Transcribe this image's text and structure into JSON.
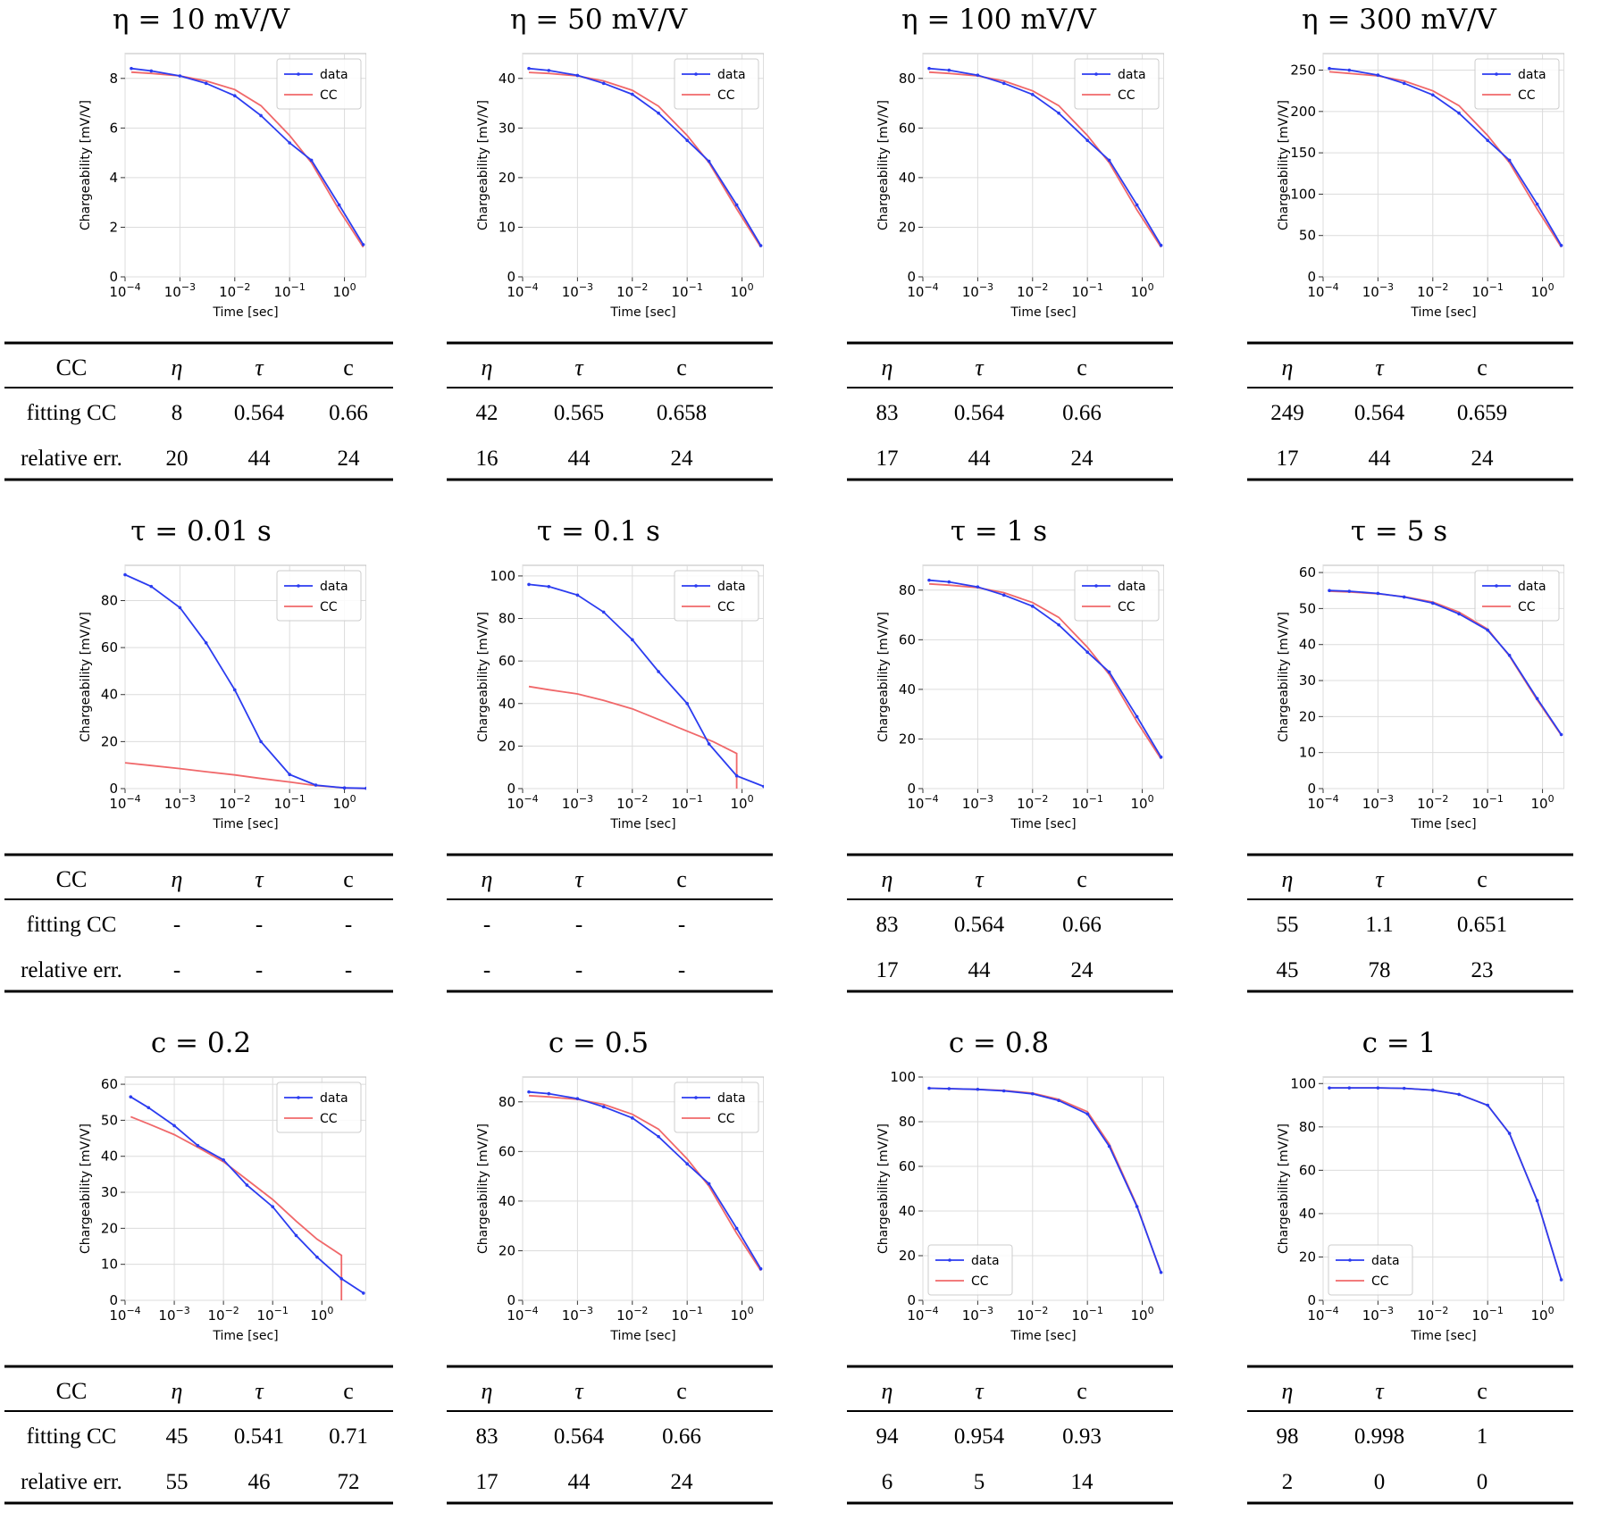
{
  "labels": {
    "table_header_row": "CC",
    "fit_row": "fitting CC",
    "err_row": "relative err."
  },
  "colors": {
    "data": "#2b3cf0",
    "cc": "#f0686a"
  },
  "chart_data": [
    {
      "type": "line",
      "title": "η = 10 mV/V",
      "xlabel": "Time [sec]",
      "ylabel": "Chargeability [mV/V]",
      "xscale": "log",
      "xlim": [
        0.0001,
        2.5
      ],
      "ylim": [
        0,
        9
      ],
      "yticks": [
        0,
        2,
        4,
        6,
        8
      ],
      "legend": "top-right",
      "grid": true,
      "series": [
        {
          "name": "data",
          "x": [
            0.00013,
            0.0003,
            0.001,
            0.003,
            0.01,
            0.03,
            0.1,
            0.25,
            0.8,
            2.2
          ],
          "y": [
            8.4,
            8.3,
            8.1,
            7.8,
            7.3,
            6.5,
            5.4,
            4.7,
            2.9,
            1.3
          ]
        },
        {
          "name": "CC",
          "x": [
            0.00013,
            0.0003,
            0.001,
            0.003,
            0.01,
            0.03,
            0.1,
            0.25,
            0.8,
            2.2
          ],
          "y": [
            8.25,
            8.2,
            8.1,
            7.9,
            7.55,
            6.9,
            5.7,
            4.6,
            2.7,
            1.2
          ]
        }
      ],
      "table": {
        "header": [
          "CC",
          "η",
          "τ",
          "c"
        ],
        "fit": [
          "8",
          "0.564",
          "0.66"
        ],
        "err": [
          "20",
          "44",
          "24"
        ]
      }
    },
    {
      "type": "line",
      "title": "η = 50 mV/V",
      "xlabel": "Time [sec]",
      "ylabel": "Chargeability [mV/V]",
      "xscale": "log",
      "xlim": [
        0.0001,
        2.5
      ],
      "ylim": [
        0,
        45
      ],
      "yticks": [
        0,
        10,
        20,
        30,
        40
      ],
      "legend": "top-right",
      "grid": true,
      "series": [
        {
          "name": "data",
          "x": [
            0.00013,
            0.0003,
            0.001,
            0.003,
            0.01,
            0.03,
            0.1,
            0.25,
            0.8,
            2.2
          ],
          "y": [
            42,
            41.6,
            40.6,
            39,
            36.8,
            33,
            27.5,
            23.3,
            14.5,
            6.3
          ]
        },
        {
          "name": "CC",
          "x": [
            0.00013,
            0.0003,
            0.001,
            0.003,
            0.01,
            0.03,
            0.1,
            0.25,
            0.8,
            2.2
          ],
          "y": [
            41.2,
            41,
            40.5,
            39.5,
            37.6,
            34.4,
            28.5,
            23,
            13.7,
            6
          ]
        }
      ],
      "table": {
        "header": [
          "",
          "η",
          "τ",
          "c"
        ],
        "fit": [
          "42",
          "0.565",
          "0.658"
        ],
        "err": [
          "16",
          "44",
          "24"
        ]
      }
    },
    {
      "type": "line",
      "title": "η = 100 mV/V",
      "xlabel": "Time [sec]",
      "ylabel": "Chargeability [mV/V]",
      "xscale": "log",
      "xlim": [
        0.0001,
        2.5
      ],
      "ylim": [
        0,
        90
      ],
      "yticks": [
        0,
        20,
        40,
        60,
        80
      ],
      "legend": "top-right",
      "grid": true,
      "series": [
        {
          "name": "data",
          "x": [
            0.00013,
            0.0003,
            0.001,
            0.003,
            0.01,
            0.03,
            0.1,
            0.25,
            0.8,
            2.2
          ],
          "y": [
            84,
            83.3,
            81.3,
            78,
            73.5,
            66,
            55,
            47,
            29,
            12.7
          ]
        },
        {
          "name": "CC",
          "x": [
            0.00013,
            0.0003,
            0.001,
            0.003,
            0.01,
            0.03,
            0.1,
            0.25,
            0.8,
            2.2
          ],
          "y": [
            82.5,
            82,
            81,
            79,
            75,
            69,
            57,
            46,
            27,
            12
          ]
        }
      ],
      "table": {
        "header": [
          "",
          "η",
          "τ",
          "c"
        ],
        "fit": [
          "83",
          "0.564",
          "0.66"
        ],
        "err": [
          "17",
          "44",
          "24"
        ]
      }
    },
    {
      "type": "line",
      "title": "η = 300 mV/V",
      "xlabel": "Time [sec]",
      "ylabel": "Chargeability [mV/V]",
      "xscale": "log",
      "xlim": [
        0.0001,
        2.5
      ],
      "ylim": [
        0,
        270
      ],
      "yticks": [
        0,
        50,
        100,
        150,
        200,
        250
      ],
      "legend": "top-right",
      "grid": true,
      "series": [
        {
          "name": "data",
          "x": [
            0.00013,
            0.0003,
            0.001,
            0.003,
            0.01,
            0.03,
            0.1,
            0.25,
            0.8,
            2.2
          ],
          "y": [
            252,
            250,
            244,
            234,
            220,
            198,
            165,
            141,
            88,
            38
          ]
        },
        {
          "name": "CC",
          "x": [
            0.00013,
            0.0003,
            0.001,
            0.003,
            0.01,
            0.03,
            0.1,
            0.25,
            0.8,
            2.2
          ],
          "y": [
            248,
            246,
            243,
            237,
            225,
            207,
            171,
            138,
            82,
            36
          ]
        }
      ],
      "table": {
        "header": [
          "",
          "η",
          "τ",
          "c"
        ],
        "fit": [
          "249",
          "0.564",
          "0.659"
        ],
        "err": [
          "17",
          "44",
          "24"
        ]
      }
    },
    {
      "type": "line",
      "title": "τ = 0.01 s",
      "xlabel": "Time [sec]",
      "ylabel": "Chargeability [mV/V]",
      "xscale": "log",
      "xlim": [
        0.0001,
        2.5
      ],
      "ylim": [
        0,
        95
      ],
      "yticks": [
        0,
        20,
        40,
        60,
        80
      ],
      "legend": "top-right",
      "grid": true,
      "series": [
        {
          "name": "data",
          "x": [
            0.0001,
            0.0003,
            0.001,
            0.003,
            0.01,
            0.03,
            0.1,
            0.3,
            1,
            2.5
          ],
          "y": [
            91,
            86,
            77,
            62,
            42,
            20,
            6,
            1.5,
            0.3,
            0.1
          ]
        },
        {
          "name": "CC",
          "x": [
            0.0001,
            0.0003,
            0.001,
            0.003,
            0.01,
            0.03,
            0.1,
            0.3,
            1,
            2.5
          ],
          "y": [
            11,
            9.8,
            8.5,
            7.2,
            5.8,
            4.3,
            2.8,
            1.3,
            0.3,
            0
          ]
        }
      ],
      "table": {
        "header": [
          "CC",
          "η",
          "τ",
          "c"
        ],
        "fit": [
          "-",
          "-",
          "-"
        ],
        "err": [
          "-",
          "-",
          "-"
        ]
      }
    },
    {
      "type": "line",
      "title": "τ = 0.1 s",
      "xlabel": "Time [sec]",
      "ylabel": "Chargeability [mV/V]",
      "xscale": "log",
      "xlim": [
        0.0001,
        2.5
      ],
      "ylim": [
        0,
        105
      ],
      "yticks": [
        0,
        20,
        40,
        60,
        80,
        100
      ],
      "legend": "top-right",
      "grid": true,
      "series": [
        {
          "name": "data",
          "x": [
            0.00013,
            0.0003,
            0.001,
            0.003,
            0.01,
            0.03,
            0.1,
            0.25,
            0.8,
            2.5
          ],
          "y": [
            96,
            95,
            91,
            83,
            70,
            55,
            40,
            21,
            6,
            1
          ]
        },
        {
          "name": "CC",
          "x": [
            0.00013,
            0.0003,
            0.001,
            0.003,
            0.01,
            0.03,
            0.1,
            0.3,
            0.8,
            0.8
          ],
          "y": [
            48,
            46.5,
            44.5,
            41.5,
            37.5,
            32.5,
            27,
            22,
            16.5,
            0
          ]
        }
      ],
      "table": {
        "header": [
          "",
          "η",
          "τ",
          "c"
        ],
        "fit": [
          "-",
          "-",
          "-"
        ],
        "err": [
          "-",
          "-",
          "-"
        ]
      }
    },
    {
      "type": "line",
      "title": "τ = 1 s",
      "xlabel": "Time [sec]",
      "ylabel": "Chargeability [mV/V]",
      "xscale": "log",
      "xlim": [
        0.0001,
        2.5
      ],
      "ylim": [
        0,
        90
      ],
      "yticks": [
        0,
        20,
        40,
        60,
        80
      ],
      "legend": "top-right",
      "grid": true,
      "series": [
        {
          "name": "data",
          "x": [
            0.00013,
            0.0003,
            0.001,
            0.003,
            0.01,
            0.03,
            0.1,
            0.25,
            0.8,
            2.2
          ],
          "y": [
            84,
            83.3,
            81.3,
            78,
            73.5,
            66,
            55,
            47,
            29,
            12.7
          ]
        },
        {
          "name": "CC",
          "x": [
            0.00013,
            0.0003,
            0.001,
            0.003,
            0.01,
            0.03,
            0.1,
            0.25,
            0.8,
            2.2
          ],
          "y": [
            82.5,
            82,
            81,
            79,
            75,
            69,
            57,
            46,
            27,
            12
          ]
        }
      ],
      "table": {
        "header": [
          "",
          "η",
          "τ",
          "c"
        ],
        "fit": [
          "83",
          "0.564",
          "0.66"
        ],
        "err": [
          "17",
          "44",
          "24"
        ]
      }
    },
    {
      "type": "line",
      "title": "τ = 5 s",
      "xlabel": "Time [sec]",
      "ylabel": "Chargeability [mV/V]",
      "xscale": "log",
      "xlim": [
        0.0001,
        2.5
      ],
      "ylim": [
        0,
        62
      ],
      "yticks": [
        0,
        10,
        20,
        30,
        40,
        50,
        60
      ],
      "legend": "top-right",
      "grid": true,
      "series": [
        {
          "name": "data",
          "x": [
            0.00013,
            0.0003,
            0.001,
            0.003,
            0.01,
            0.03,
            0.1,
            0.25,
            0.8,
            2.2
          ],
          "y": [
            55,
            54.8,
            54.2,
            53.2,
            51.5,
            48.5,
            44,
            37,
            25,
            15
          ]
        },
        {
          "name": "CC",
          "x": [
            0.00013,
            0.0003,
            0.001,
            0.003,
            0.01,
            0.03,
            0.1,
            0.25,
            0.8,
            2.2
          ],
          "y": [
            54.8,
            54.6,
            54.1,
            53.3,
            51.8,
            49,
            44.3,
            36.8,
            24.6,
            14.8
          ]
        }
      ],
      "table": {
        "header": [
          "",
          "η",
          "τ",
          "c"
        ],
        "fit": [
          "55",
          "1.1",
          "0.651"
        ],
        "err": [
          "45",
          "78",
          "23"
        ]
      }
    },
    {
      "type": "line",
      "title": "c = 0.2",
      "xlabel": "Time [sec]",
      "ylabel": "Chargeability [mV/V]",
      "xscale": "log",
      "xlim": [
        0.0001,
        8
      ],
      "ylim": [
        0,
        62
      ],
      "yticks": [
        0,
        10,
        20,
        30,
        40,
        50,
        60
      ],
      "legend": "top-right",
      "grid": true,
      "series": [
        {
          "name": "data",
          "x": [
            0.00013,
            0.0003,
            0.001,
            0.003,
            0.01,
            0.03,
            0.1,
            0.3,
            0.8,
            2.5,
            7
          ],
          "y": [
            56.5,
            53.5,
            48.5,
            43,
            39,
            32,
            26,
            18,
            12,
            6,
            2
          ]
        },
        {
          "name": "CC",
          "x": [
            0.00013,
            0.0003,
            0.001,
            0.003,
            0.01,
            0.03,
            0.1,
            0.3,
            0.8,
            2.5,
            2.5
          ],
          "y": [
            51,
            49,
            46,
            42.5,
            38.5,
            33.5,
            28,
            22,
            17,
            12.5,
            0
          ]
        }
      ],
      "table": {
        "header": [
          "CC",
          "η",
          "τ",
          "c"
        ],
        "fit": [
          "45",
          "0.541",
          "0.71"
        ],
        "err": [
          "55",
          "46",
          "72"
        ]
      }
    },
    {
      "type": "line",
      "title": "c = 0.5",
      "xlabel": "Time [sec]",
      "ylabel": "Chargeability [mV/V]",
      "xscale": "log",
      "xlim": [
        0.0001,
        2.5
      ],
      "ylim": [
        0,
        90
      ],
      "yticks": [
        0,
        20,
        40,
        60,
        80
      ],
      "legend": "top-right",
      "grid": true,
      "series": [
        {
          "name": "data",
          "x": [
            0.00013,
            0.0003,
            0.001,
            0.003,
            0.01,
            0.03,
            0.1,
            0.25,
            0.8,
            2.2
          ],
          "y": [
            84,
            83.3,
            81.3,
            78,
            73.5,
            66,
            55,
            47,
            29,
            12.7
          ]
        },
        {
          "name": "CC",
          "x": [
            0.00013,
            0.0003,
            0.001,
            0.003,
            0.01,
            0.03,
            0.1,
            0.25,
            0.8,
            2.2
          ],
          "y": [
            82.5,
            82,
            81,
            79,
            75,
            69,
            57,
            46,
            27,
            12
          ]
        }
      ],
      "table": {
        "header": [
          "",
          "η",
          "τ",
          "c"
        ],
        "fit": [
          "83",
          "0.564",
          "0.66"
        ],
        "err": [
          "17",
          "44",
          "24"
        ]
      }
    },
    {
      "type": "line",
      "title": "c = 0.8",
      "xlabel": "Time [sec]",
      "ylabel": "Chargeability [mV/V]",
      "xscale": "log",
      "xlim": [
        0.0001,
        2.5
      ],
      "ylim": [
        0,
        100
      ],
      "yticks": [
        0,
        20,
        40,
        60,
        80,
        100
      ],
      "legend": "bottom-left",
      "grid": true,
      "series": [
        {
          "name": "data",
          "x": [
            0.00013,
            0.0003,
            0.001,
            0.003,
            0.01,
            0.03,
            0.1,
            0.25,
            0.8,
            2.2
          ],
          "y": [
            95,
            94.8,
            94.5,
            93.8,
            92.5,
            89.5,
            83.5,
            69,
            42,
            12.5
          ]
        },
        {
          "name": "CC",
          "x": [
            0.00013,
            0.0003,
            0.001,
            0.003,
            0.01,
            0.03,
            0.1,
            0.25,
            0.8,
            2.2
          ],
          "y": [
            95,
            94.8,
            94.5,
            94,
            92.8,
            90,
            84.5,
            70,
            42.5,
            12
          ]
        }
      ],
      "table": {
        "header": [
          "",
          "η",
          "τ",
          "c"
        ],
        "fit": [
          "94",
          "0.954",
          "0.93"
        ],
        "err": [
          "6",
          "5",
          "14"
        ]
      }
    },
    {
      "type": "line",
      "title": "c = 1",
      "xlabel": "Time [sec]",
      "ylabel": "Chargeability [mV/V]",
      "xscale": "log",
      "xlim": [
        0.0001,
        2.5
      ],
      "ylim": [
        0,
        103
      ],
      "yticks": [
        0,
        20,
        40,
        60,
        80,
        100
      ],
      "legend": "bottom-left",
      "grid": true,
      "series": [
        {
          "name": "data",
          "x": [
            0.00013,
            0.0003,
            0.001,
            0.003,
            0.01,
            0.03,
            0.1,
            0.25,
            0.8,
            2.2
          ],
          "y": [
            98,
            98,
            98,
            97.8,
            97,
            95,
            90,
            77,
            46,
            9.5
          ]
        },
        {
          "name": "CC",
          "x": [
            0.00013,
            0.0003,
            0.001,
            0.003,
            0.01,
            0.03,
            0.1,
            0.25,
            0.8,
            2.2
          ],
          "y": [
            98,
            98,
            98,
            97.8,
            97,
            95,
            90,
            77,
            46,
            9.5
          ]
        }
      ],
      "table": {
        "header": [
          "",
          "η",
          "τ",
          "c"
        ],
        "fit": [
          "98",
          "0.998",
          "1"
        ],
        "err": [
          "2",
          "0",
          "0"
        ]
      }
    }
  ]
}
